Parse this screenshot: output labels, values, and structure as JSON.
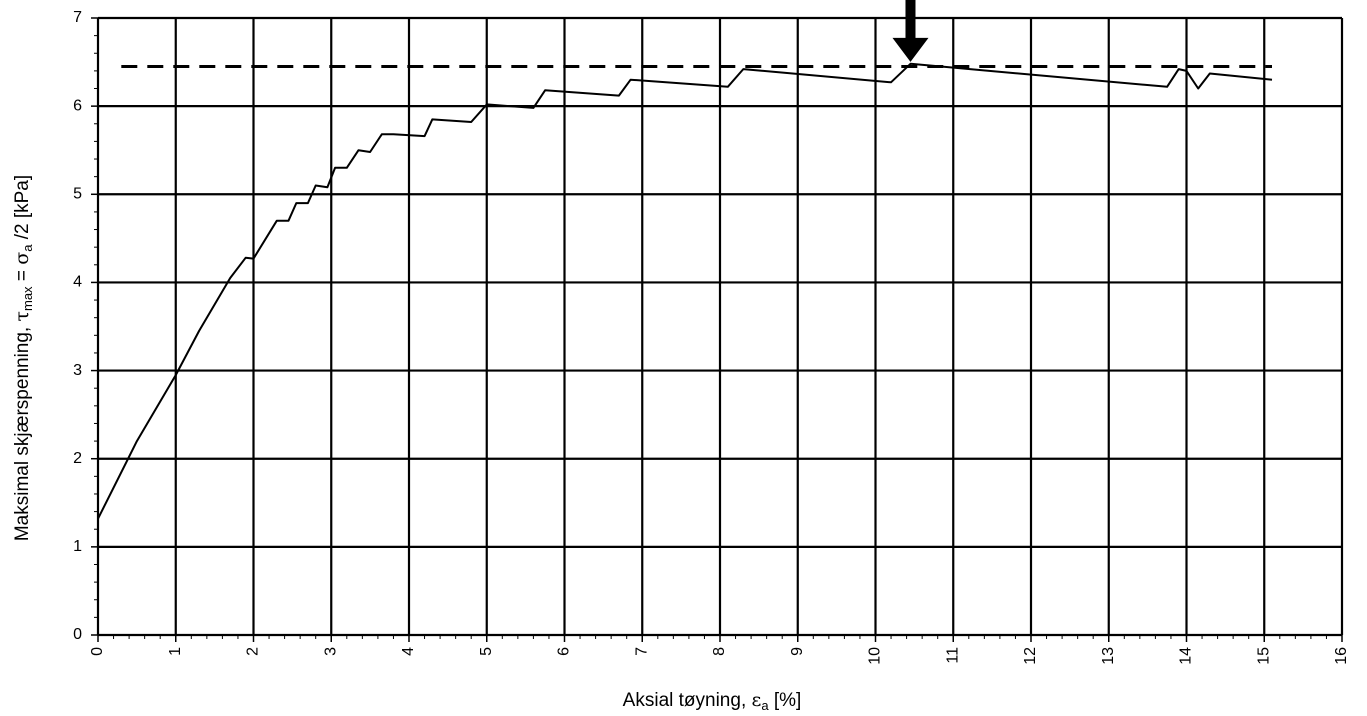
{
  "chart_data": {
    "type": "line",
    "xlabel": "Aksial tøyning, εa [%]",
    "xlabel_parts": {
      "main": "Aksial tøyning, ",
      "symbol": "ε",
      "sub": "a",
      "tail": " [%]"
    },
    "ylabel": "Maksimal skjærspenning, τmax = σa /2  [kPa]",
    "ylabel_parts": {
      "main": "Maksimal skjærspenning, ",
      "tau": "τ",
      "tau_sub": "max",
      "eq": " = ",
      "sigma": "σ",
      "sigma_sub": "a",
      "tail": " /2  [kPa]"
    },
    "xlim": [
      0,
      16
    ],
    "ylim": [
      0,
      7
    ],
    "x_ticks": [
      0,
      1,
      2,
      3,
      4,
      5,
      6,
      7,
      8,
      9,
      10,
      11,
      12,
      13,
      14,
      15,
      16
    ],
    "y_ticks": [
      0,
      1,
      2,
      3,
      4,
      5,
      6,
      7
    ],
    "x_tick_labels": [
      "0",
      "1",
      "2",
      "3",
      "4",
      "5",
      "6",
      "7",
      "8",
      "9",
      "10",
      "11",
      "12",
      "13",
      "14",
      "15",
      "16"
    ],
    "y_tick_labels": [
      "0",
      "1",
      "2",
      "3",
      "4",
      "5",
      "6",
      "7"
    ],
    "grid": true,
    "series": [
      {
        "style": "solid",
        "x": [
          0,
          0.5,
          0.9,
          1.0,
          1.3,
          1.7,
          1.9,
          2.0,
          2.3,
          2.45,
          2.55,
          2.7,
          2.8,
          2.95,
          3.05,
          3.2,
          3.35,
          3.5,
          3.65,
          3.8,
          4.2,
          4.3,
          4.8,
          5.0,
          5.6,
          5.75,
          6.7,
          6.85,
          8.1,
          8.3,
          10.2,
          10.45,
          13.75,
          13.9,
          14.0,
          14.15,
          14.3,
          15.1
        ],
        "y": [
          1.32,
          2.2,
          2.8,
          2.95,
          3.45,
          4.05,
          4.28,
          4.27,
          4.7,
          4.7,
          4.9,
          4.9,
          5.1,
          5.08,
          5.3,
          5.3,
          5.5,
          5.48,
          5.68,
          5.68,
          5.66,
          5.85,
          5.82,
          6.02,
          5.98,
          6.18,
          6.12,
          6.3,
          6.22,
          6.42,
          6.27,
          6.48,
          6.22,
          6.42,
          6.4,
          6.2,
          6.37,
          6.3
        ]
      },
      {
        "style": "dashed",
        "x": [
          0.3,
          15.1
        ],
        "y": [
          6.45,
          6.45
        ]
      }
    ],
    "annotations": [
      {
        "type": "arrow-down",
        "x": 10.45,
        "y": 6.48
      }
    ]
  }
}
